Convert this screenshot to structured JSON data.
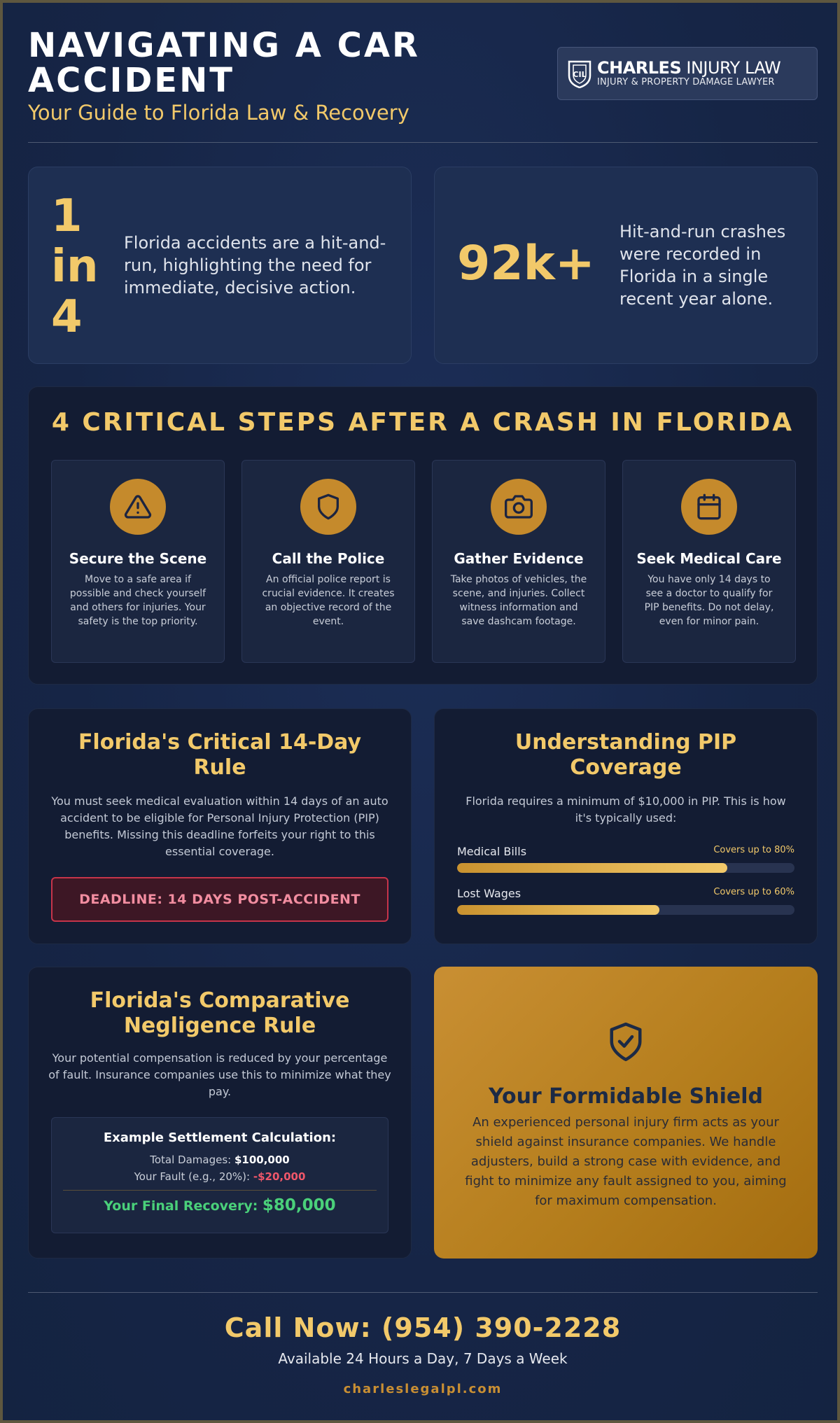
{
  "header": {
    "title": "NAVIGATING A CAR ACCIDENT",
    "subtitle": "Your Guide to Florida Law & Recovery",
    "logo": {
      "name_bold": "CHARLES",
      "name_rest": " INJURY LAW",
      "tagline": "INJURY & PROPERTY DAMAGE LAWYER",
      "monogram": "CIL"
    }
  },
  "stats": [
    {
      "value_lines": [
        "1",
        "in",
        "4"
      ],
      "text": "Florida accidents are a hit-and-run, highlighting the need for immediate, decisive action."
    },
    {
      "value": "92k+",
      "text": "Hit-and-run crashes were recorded in Florida in a single recent year alone."
    }
  ],
  "steps_section": {
    "title": "4 CRITICAL STEPS AFTER A CRASH IN FLORIDA",
    "steps": [
      {
        "icon": "warning-icon",
        "title": "Secure the Scene",
        "text": "Move to a safe area if possible and check yourself and others for injuries. Your safety is the top priority."
      },
      {
        "icon": "shield-icon",
        "title": "Call the Police",
        "text": "An official police report is crucial evidence. It creates an objective record of the event."
      },
      {
        "icon": "camera-icon",
        "title": "Gather Evidence",
        "text": "Take photos of vehicles, the scene, and injuries. Collect witness information and save dashcam footage."
      },
      {
        "icon": "calendar-icon",
        "title": "Seek Medical Care",
        "text": "You have only 14 days to see a doctor to qualify for PIP benefits. Do not delay, even for minor pain."
      }
    ]
  },
  "rule14": {
    "title": "Florida's Critical 14-Day Rule",
    "text": "You must seek medical evaluation within 14 days of an auto accident to be eligible for Personal Injury Protection (PIP) benefits. Missing this deadline forfeits your right to this essential coverage.",
    "deadline": "DEADLINE: 14 DAYS POST-ACCIDENT"
  },
  "pip": {
    "title": "Understanding PIP Coverage",
    "text": "Florida requires a minimum of $10,000 in PIP. This is how it's typically used:",
    "bars": [
      {
        "label": "Medical Bills",
        "cover": "Covers up to 80%",
        "percent": 80
      },
      {
        "label": "Lost Wages",
        "cover": "Covers up to 60%",
        "percent": 60
      }
    ]
  },
  "negligence": {
    "title": "Florida's Comparative Negligence Rule",
    "text": "Your potential compensation is reduced by your percentage of fault. Insurance companies use this to minimize what they pay.",
    "calc": {
      "title": "Example Settlement Calculation:",
      "damages_label": "Total Damages: ",
      "damages_value": "$100,000",
      "fault_label": "Your Fault (e.g., 20%): ",
      "fault_value": "-$20,000",
      "final_label": "Your Final Recovery: ",
      "final_value": "$80,000"
    }
  },
  "shield": {
    "title": "Your Formidable Shield",
    "text": "An experienced personal injury firm acts as your shield against insurance companies. We handle adjusters, build a strong case with evidence, and fight to minimize any fault assigned to you, aiming for maximum compensation."
  },
  "footer": {
    "cta": "Call Now: (954) 390-2228",
    "availability": "Available 24 Hours a Day, 7 Days a Week",
    "website": "charleslegalpl.com"
  },
  "colors": {
    "background": "#172749",
    "accent_gold": "#f2c96a",
    "icon_circle": "#c58a2c",
    "deadline_red": "#c7344a",
    "recovery_green": "#4ad07a"
  }
}
